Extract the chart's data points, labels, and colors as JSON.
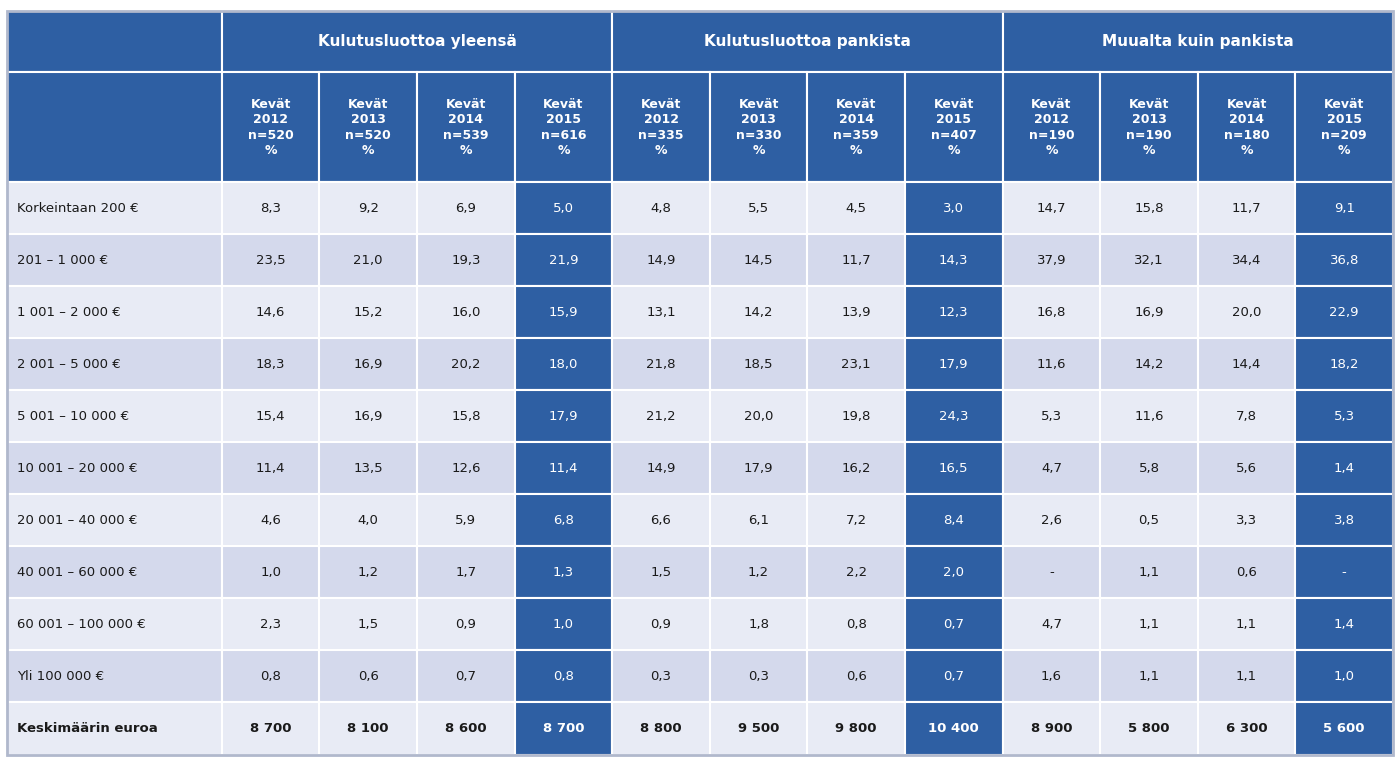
{
  "col_header_group": [
    "Kulutusluottoa yleensä",
    "Kulutusluottoa pankista",
    "Muualta kuin pankista"
  ],
  "col_header_group_spans": [
    4,
    4,
    4
  ],
  "col_headers": [
    "Kevät\n2012\nn=520\n%",
    "Kevät\n2013\nn=520\n%",
    "Kevät\n2014\nn=539\n%",
    "Kevät\n2015\nn=616\n%",
    "Kevät\n2012\nn=335\n%",
    "Kevät\n2013\nn=330\n%",
    "Kevät\n2014\nn=359\n%",
    "Kevät\n2015\nn=407\n%",
    "Kevät\n2012\nn=190\n%",
    "Kevät\n2013\nn=190\n%",
    "Kevät\n2014\nn=180\n%",
    "Kevät\n2015\nn=209\n%"
  ],
  "row_labels": [
    "Korkeintaan 200 €",
    "201 – 1 000 €",
    "1 001 – 2 000 €",
    "2 001 – 5 000 €",
    "5 001 – 10 000 €",
    "10 001 – 20 000 €",
    "20 001 – 40 000 €",
    "40 001 – 60 000 €",
    "60 001 – 100 000 €",
    "Yli 100 000 €",
    "Keskimäärin euroa"
  ],
  "data": [
    [
      "8,3",
      "9,2",
      "6,9",
      "5,0",
      "4,8",
      "5,5",
      "4,5",
      "3,0",
      "14,7",
      "15,8",
      "11,7",
      "9,1"
    ],
    [
      "23,5",
      "21,0",
      "19,3",
      "21,9",
      "14,9",
      "14,5",
      "11,7",
      "14,3",
      "37,9",
      "32,1",
      "34,4",
      "36,8"
    ],
    [
      "14,6",
      "15,2",
      "16,0",
      "15,9",
      "13,1",
      "14,2",
      "13,9",
      "12,3",
      "16,8",
      "16,9",
      "20,0",
      "22,9"
    ],
    [
      "18,3",
      "16,9",
      "20,2",
      "18,0",
      "21,8",
      "18,5",
      "23,1",
      "17,9",
      "11,6",
      "14,2",
      "14,4",
      "18,2"
    ],
    [
      "15,4",
      "16,9",
      "15,8",
      "17,9",
      "21,2",
      "20,0",
      "19,8",
      "24,3",
      "5,3",
      "11,6",
      "7,8",
      "5,3"
    ],
    [
      "11,4",
      "13,5",
      "12,6",
      "11,4",
      "14,9",
      "17,9",
      "16,2",
      "16,5",
      "4,7",
      "5,8",
      "5,6",
      "1,4"
    ],
    [
      "4,6",
      "4,0",
      "5,9",
      "6,8",
      "6,6",
      "6,1",
      "7,2",
      "8,4",
      "2,6",
      "0,5",
      "3,3",
      "3,8"
    ],
    [
      "1,0",
      "1,2",
      "1,7",
      "1,3",
      "1,5",
      "1,2",
      "2,2",
      "2,0",
      "-",
      "1,1",
      "0,6",
      "-"
    ],
    [
      "2,3",
      "1,5",
      "0,9",
      "1,0",
      "0,9",
      "1,8",
      "0,8",
      "0,7",
      "4,7",
      "1,1",
      "1,1",
      "1,4"
    ],
    [
      "0,8",
      "0,6",
      "0,7",
      "0,8",
      "0,3",
      "0,3",
      "0,6",
      "0,7",
      "1,6",
      "1,1",
      "1,1",
      "1,0"
    ],
    [
      "8 700",
      "8 100",
      "8 600",
      "8 700",
      "8 800",
      "9 500",
      "9 800",
      "10 400",
      "8 900",
      "5 800",
      "6 300",
      "5 600"
    ]
  ],
  "highlighted_cols": [
    3,
    7,
    11
  ],
  "header_bg": "#2E5FA3",
  "highlight_bg": "#2E5FA3",
  "header_text_color": "#FFFFFF",
  "highlight_text_color": "#FFFFFF",
  "row_bg_even": "#D4D9EC",
  "row_bg_odd": "#E8EBF5",
  "border_color": "#FFFFFF",
  "text_color": "#1A1A1A",
  "fig_bg": "#FFFFFF",
  "outer_border_color": "#B0B8CC",
  "data_fontsize": 9.5,
  "header_fontsize": 9.0,
  "group_header_fontsize": 11.0,
  "label_fontsize": 9.5
}
